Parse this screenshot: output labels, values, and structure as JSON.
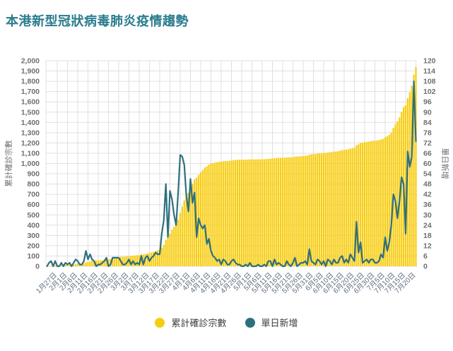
{
  "title": "本港新型冠狀病毒肺炎疫情趨勢",
  "colors": {
    "title": "#2A7C8E",
    "background": "#FFFFFF"
  },
  "chart_data": {
    "type": "combo",
    "subtypes": [
      "bar",
      "line"
    ],
    "grid": true,
    "legend_position": "bottom",
    "x_range": [
      {
        "month": 1,
        "from": 22,
        "to": 31
      },
      {
        "month": 2,
        "from": 1,
        "to": 29
      },
      {
        "month": 3,
        "from": 1,
        "to": 31
      },
      {
        "month": 4,
        "from": 1,
        "to": 30
      },
      {
        "month": 5,
        "from": 1,
        "to": 31
      },
      {
        "month": 6,
        "from": 1,
        "to": 30
      },
      {
        "month": 7,
        "from": 1,
        "to": 20
      }
    ],
    "x_tick_labels": [
      "1月27日",
      "2月1日",
      "2月6日",
      "2月11日",
      "2月16日",
      "2月21日",
      "2月26日",
      "3月2日",
      "3月7日",
      "3月12日",
      "3月17日",
      "3月22日",
      "3月27日",
      "4月1日",
      "4月6日",
      "4月11日",
      "4月16日",
      "4月21日",
      "4月26日",
      "5月1日",
      "5月6日",
      "5月11日",
      "5月16日",
      "5月21日",
      "5月26日",
      "5月31日",
      "6月5日",
      "6月10日",
      "6月15日",
      "6月20日",
      "6月25日",
      "6月30日",
      "7月5日",
      "7月10日",
      "7月15日",
      "7月20日"
    ],
    "left_axis": {
      "title": "累計確診宗數",
      "min": 0,
      "max": 2000,
      "step": 100,
      "ticks": [
        "0",
        "100",
        "200",
        "300",
        "400",
        "500",
        "600",
        "700",
        "800",
        "900",
        "1,000",
        "1,100",
        "1,200",
        "1,300",
        "1,400",
        "1,500",
        "1,600",
        "1,700",
        "1,800",
        "1,900",
        "2,000"
      ]
    },
    "right_axis": {
      "title": "單日新增",
      "min": 0,
      "max": 120,
      "step": 6,
      "ticks": [
        "0",
        "6",
        "12",
        "18",
        "24",
        "30",
        "36",
        "42",
        "48",
        "54",
        "60",
        "66",
        "72",
        "78",
        "84",
        "90",
        "96",
        "102",
        "108",
        "114",
        "120"
      ]
    },
    "series": [
      {
        "name": "累計確診宗數",
        "type": "bar",
        "axis": "left",
        "color": "#F8CD10",
        "values": [
          0,
          2,
          5,
          5,
          8,
          8,
          8,
          10,
          10,
          12,
          13,
          15,
          15,
          17,
          21,
          24,
          25,
          26,
          29,
          38,
          42,
          49,
          53,
          56,
          56,
          57,
          58,
          60,
          63,
          68,
          68,
          69,
          74,
          79,
          84,
          89,
          92,
          93,
          94,
          96,
          100,
          101,
          104,
          105,
          107,
          108,
          114,
          115,
          120,
          126,
          129,
          134,
          140,
          148,
          155,
          162,
          181,
          208,
          256,
          273,
          317,
          356,
          386,
          410,
          453,
          518,
          582,
          641,
          682,
          714,
          765,
          802,
          845,
          862,
          890,
          914,
          936,
          960,
          973,
          989,
          998,
          1004,
          1009,
          1012,
          1016,
          1017,
          1021,
          1024,
          1025,
          1026,
          1029,
          1033,
          1035,
          1036,
          1037,
          1037,
          1037,
          1038,
          1038,
          1040,
          1040,
          1040,
          1040,
          1041,
          1041,
          1041,
          1042,
          1042,
          1045,
          1048,
          1048,
          1052,
          1053,
          1055,
          1056,
          1056,
          1056,
          1059,
          1060,
          1060,
          1062,
          1067,
          1067,
          1068,
          1070,
          1072,
          1075,
          1076,
          1086,
          1089,
          1091,
          1092,
          1096,
          1099,
          1100,
          1103,
          1103,
          1107,
          1110,
          1111,
          1115,
          1117,
          1119,
          1124,
          1130,
          1132,
          1136,
          1138,
          1145,
          1150,
          1153,
          1179,
          1187,
          1201,
          1203,
          1206,
          1210,
          1212,
          1216,
          1220,
          1222,
          1224,
          1227,
          1234,
          1239,
          1256,
          1265,
          1279,
          1303,
          1345,
          1383,
          1411,
          1449,
          1501,
          1549,
          1568,
          1635,
          1693,
          1757,
          1865,
          1938
        ]
      },
      {
        "name": "單日新增",
        "type": "line",
        "axis": "right",
        "color": "#2E6F7F",
        "values": [
          0,
          2,
          3,
          0,
          3,
          0,
          0,
          2,
          0,
          2,
          1,
          2,
          0,
          2,
          4,
          3,
          1,
          1,
          3,
          9,
          4,
          7,
          4,
          3,
          0,
          1,
          1,
          2,
          3,
          5,
          0,
          1,
          5,
          5,
          5,
          5,
          3,
          1,
          1,
          2,
          4,
          1,
          3,
          1,
          2,
          1,
          6,
          1,
          5,
          6,
          3,
          5,
          6,
          8,
          7,
          7,
          19,
          27,
          48,
          17,
          44,
          39,
          30,
          24,
          43,
          65,
          64,
          59,
          41,
          32,
          51,
          37,
          43,
          17,
          28,
          24,
          22,
          24,
          13,
          16,
          9,
          6,
          5,
          3,
          4,
          1,
          4,
          3,
          1,
          1,
          3,
          4,
          2,
          1,
          1,
          0,
          0,
          1,
          0,
          2,
          0,
          0,
          0,
          1,
          0,
          0,
          1,
          0,
          3,
          3,
          0,
          4,
          1,
          2,
          1,
          0,
          0,
          3,
          1,
          0,
          2,
          5,
          0,
          1,
          2,
          2,
          3,
          1,
          10,
          3,
          2,
          1,
          4,
          3,
          1,
          3,
          0,
          4,
          3,
          1,
          4,
          2,
          2,
          5,
          6,
          2,
          4,
          2,
          7,
          5,
          3,
          26,
          8,
          14,
          2,
          3,
          4,
          2,
          4,
          4,
          2,
          2,
          3,
          7,
          5,
          17,
          9,
          14,
          24,
          42,
          38,
          28,
          38,
          52,
          48,
          19,
          67,
          58,
          64,
          108,
          73
        ]
      }
    ],
    "colors": {
      "grid": "#E0E0E0",
      "tick_text": "#6F6F6F",
      "x_tick_text": "#5E6E80"
    }
  },
  "legend": {
    "cumulative_label": "累計確診宗數",
    "daily_label": "單日新增"
  }
}
